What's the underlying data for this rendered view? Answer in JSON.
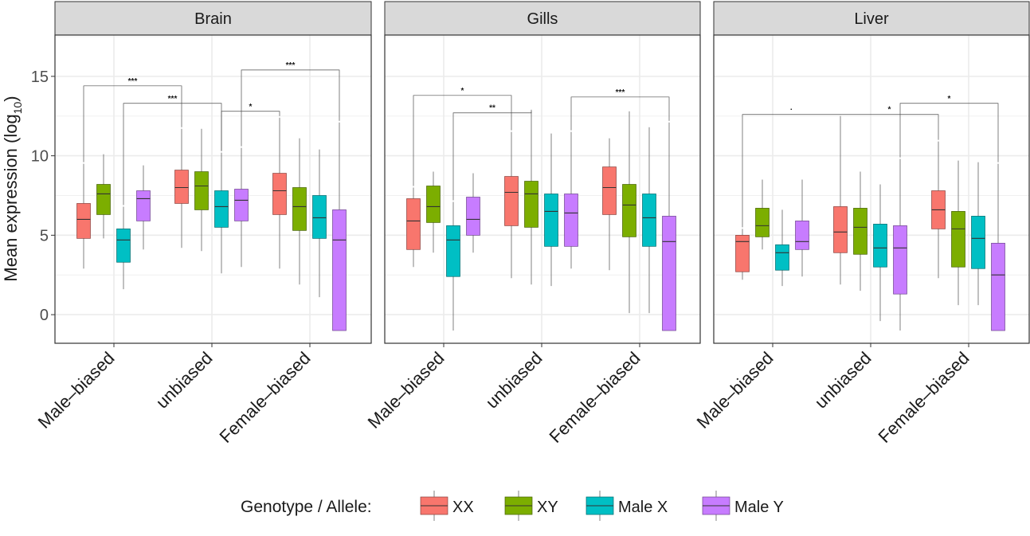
{
  "chart_data": {
    "type": "boxplot",
    "ylabel": "Mean expression (log",
    "ylabel_sub": "10",
    "ylabel_close": ")",
    "ylim": [
      -1.8,
      17.6
    ],
    "yticks": [
      0,
      5,
      10,
      15
    ],
    "categories": [
      "Male–biased",
      "unbiased",
      "Female–biased"
    ],
    "legend": {
      "title": "Genotype / Allele:",
      "position": "bottom",
      "entries": [
        {
          "name": "XX",
          "color": "#F8766D"
        },
        {
          "name": "XY",
          "color": "#7CAE00"
        },
        {
          "name": "Male X",
          "color": "#00BFC4"
        },
        {
          "name": "Male Y",
          "color": "#C77CFF"
        }
      ]
    },
    "grid": true,
    "facets": [
      {
        "name": "Brain",
        "boxes": [
          [
            [
              2.9,
              4.8,
              6.0,
              7.0,
              9.5
            ],
            [
              4.8,
              6.3,
              7.6,
              8.2,
              10.1
            ],
            [
              1.6,
              3.3,
              4.7,
              5.4,
              6.8
            ],
            [
              4.1,
              5.9,
              7.3,
              7.8,
              9.4
            ]
          ],
          [
            [
              4.2,
              7.0,
              8.0,
              9.1,
              11.7
            ],
            [
              4.0,
              6.6,
              8.1,
              9.0,
              11.7
            ],
            [
              2.6,
              5.5,
              6.8,
              7.8,
              10.2
            ],
            [
              3.0,
              5.9,
              7.2,
              7.9,
              10.5
            ]
          ],
          [
            [
              2.9,
              6.3,
              7.8,
              8.9,
              12.4
            ],
            [
              1.9,
              5.3,
              6.8,
              8.0,
              11.1
            ],
            [
              1.1,
              4.8,
              6.1,
              7.5,
              10.4
            ],
            [
              -1.0,
              -1.0,
              4.7,
              6.6,
              12.1
            ]
          ]
        ],
        "comparisons": [
          {
            "from": [
              0,
              0
            ],
            "to": [
              1,
              0
            ],
            "y": 14.4,
            "label": "***"
          },
          {
            "from": [
              0,
              2
            ],
            "to": [
              1,
              2
            ],
            "y": 13.3,
            "label": "***"
          },
          {
            "from": [
              1,
              2
            ],
            "to": [
              2,
              0
            ],
            "y": 12.8,
            "label": "*"
          },
          {
            "from": [
              1,
              3
            ],
            "to": [
              2,
              3
            ],
            "y": 15.4,
            "label": "***"
          }
        ]
      },
      {
        "name": "Gills",
        "boxes": [
          [
            [
              3.0,
              4.1,
              5.9,
              7.3,
              8.0
            ],
            [
              3.9,
              5.8,
              6.8,
              8.1,
              9.0
            ],
            [
              -1.0,
              2.4,
              4.7,
              5.6,
              7.1
            ],
            [
              3.9,
              5.0,
              6.0,
              7.4,
              8.9
            ]
          ],
          [
            [
              2.3,
              5.6,
              7.7,
              8.7,
              11.5
            ],
            [
              1.9,
              5.5,
              7.6,
              8.4,
              12.8
            ],
            [
              1.8,
              4.3,
              6.5,
              7.6,
              11.4
            ],
            [
              2.9,
              4.3,
              6.4,
              7.6,
              11.5
            ]
          ],
          [
            [
              2.8,
              6.3,
              8.0,
              9.3,
              11.1
            ],
            [
              0.1,
              4.9,
              6.9,
              8.2,
              12.8
            ],
            [
              0.1,
              4.3,
              6.1,
              7.6,
              11.8
            ],
            [
              -1.0,
              -1.0,
              4.6,
              6.2,
              12.1
            ]
          ]
        ],
        "comparisons": [
          {
            "from": [
              0,
              0
            ],
            "to": [
              1,
              0
            ],
            "y": 13.8,
            "label": "*"
          },
          {
            "from": [
              0,
              2
            ],
            "to": [
              1,
              1
            ],
            "y": 12.7,
            "label": "**"
          },
          {
            "from": [
              1,
              3
            ],
            "to": [
              2,
              3
            ],
            "y": 13.7,
            "label": "***"
          }
        ]
      },
      {
        "name": "Liver",
        "boxes": [
          [
            [
              2.2,
              2.7,
              4.6,
              5.0,
              5.4
            ],
            [
              4.1,
              4.9,
              5.6,
              6.7,
              8.5
            ],
            [
              1.8,
              2.8,
              3.9,
              4.4,
              6.6
            ],
            [
              2.4,
              4.1,
              4.6,
              5.9,
              8.5
            ]
          ],
          [
            [
              1.9,
              3.9,
              5.2,
              6.8,
              12.5
            ],
            [
              1.5,
              3.8,
              5.5,
              6.7,
              9.0
            ],
            [
              -0.4,
              3.0,
              4.2,
              5.7,
              8.2
            ],
            [
              -1.0,
              1.3,
              4.2,
              5.6,
              9.8
            ]
          ],
          [
            [
              2.3,
              5.4,
              6.6,
              7.8,
              10.9
            ],
            [
              0.6,
              3.0,
              5.4,
              6.5,
              9.7
            ],
            [
              0.6,
              2.9,
              4.8,
              6.2,
              9.6
            ],
            [
              -1.0,
              -1.0,
              2.5,
              4.5,
              9.5
            ]
          ]
        ],
        "comparisons": [
          {
            "from": [
              0,
              0
            ],
            "to": [
              1,
              0
            ],
            "y": 12.6,
            "label": "·"
          },
          {
            "from": [
              1,
              0
            ],
            "to": [
              2,
              0
            ],
            "y": 12.6,
            "label": "*"
          },
          {
            "from": [
              1,
              3
            ],
            "to": [
              2,
              3
            ],
            "y": 13.3,
            "label": "*"
          }
        ]
      }
    ]
  }
}
